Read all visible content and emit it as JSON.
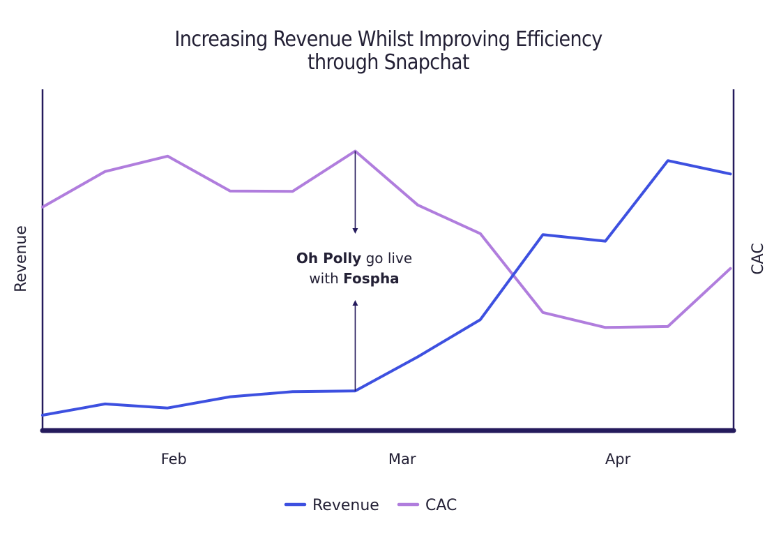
{
  "chart_data": {
    "type": "line",
    "title": [
      "Increasing Revenue Whilst Improving Efficiency",
      "through Snapchat"
    ],
    "ylabel_left": "Revenue",
    "ylabel_right": "CAC",
    "xlabel": "",
    "x": [
      0,
      1,
      2,
      3,
      4,
      5,
      6,
      7,
      8,
      9,
      10,
      11
    ],
    "x_ticks": [
      {
        "x": 2.1,
        "label": "Feb"
      },
      {
        "x": 5.75,
        "label": "Mar"
      },
      {
        "x": 9.2,
        "label": "Apr"
      }
    ],
    "xlim": [
      0,
      11.05
    ],
    "grid": false,
    "legend_position": "bottom-center",
    "series": [
      {
        "name": "Revenue",
        "axis": "left",
        "color": "#3d50e0",
        "values": [
          4.5,
          7.8,
          6.6,
          9.9,
          11.4,
          11.6,
          21.6,
          32.5,
          57.4,
          55.5,
          79.1,
          75.2
        ],
        "ylim": [
          0,
          100
        ]
      },
      {
        "name": "CAC",
        "axis": "right",
        "color": "#b07ddd",
        "values": [
          65.5,
          75.9,
          80.4,
          70.2,
          70.1,
          81.9,
          66.1,
          57.7,
          34.6,
          30.2,
          30.5,
          47.5
        ],
        "ylim": [
          0,
          100
        ]
      }
    ],
    "annotation": {
      "x": 5.0,
      "line1": {
        "bold": "Oh Polly",
        "normal": " go live"
      },
      "line2": {
        "normal": "with ",
        "bold": "Fospha"
      }
    }
  },
  "legend": [
    {
      "label": "Revenue",
      "color": "#3d50e0"
    },
    {
      "label": "CAC",
      "color": "#b07ddd"
    }
  ],
  "colors": {
    "axis": "#241a5c",
    "text": "#232035"
  }
}
